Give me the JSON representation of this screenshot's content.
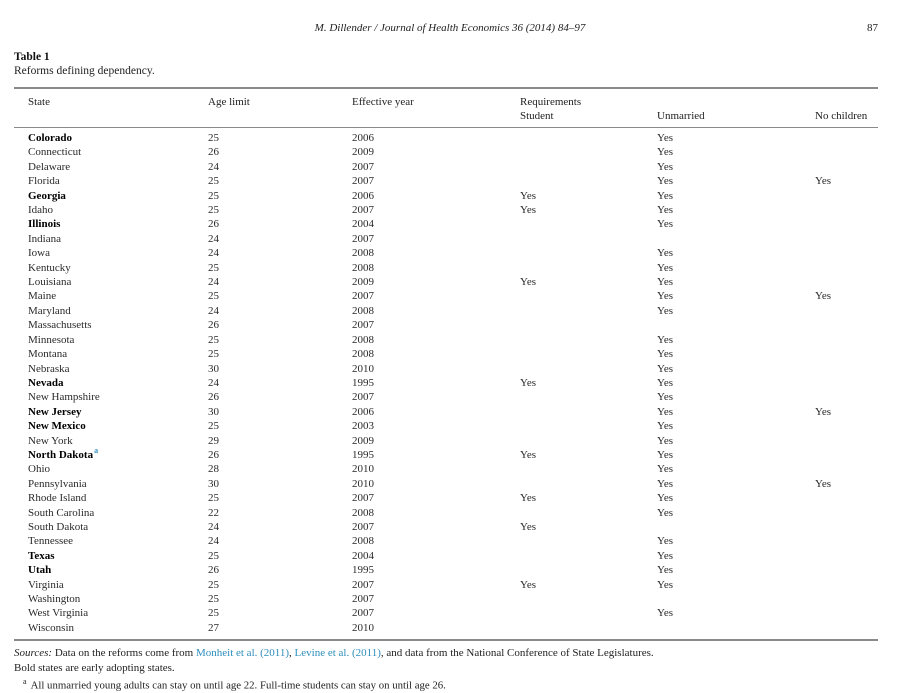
{
  "page": {
    "running_head": "M. Dillender / Journal of Health Economics 36 (2014) 84–97",
    "page_number": "87"
  },
  "table": {
    "label": "Table 1",
    "caption": "Reforms defining dependency.",
    "headers": {
      "state": "State",
      "age_limit": "Age limit",
      "effective_year": "Effective year",
      "requirements": "Requirements",
      "student": "Student",
      "unmarried": "Unmarried",
      "no_children": "No children"
    },
    "rows": [
      {
        "state": "Colorado",
        "bold": true,
        "fn": "",
        "age": "25",
        "year": "2006",
        "student": "",
        "unmarried": "Yes",
        "no_children": ""
      },
      {
        "state": "Connecticut",
        "bold": false,
        "fn": "",
        "age": "26",
        "year": "2009",
        "student": "",
        "unmarried": "Yes",
        "no_children": ""
      },
      {
        "state": "Delaware",
        "bold": false,
        "fn": "",
        "age": "24",
        "year": "2007",
        "student": "",
        "unmarried": "Yes",
        "no_children": ""
      },
      {
        "state": "Florida",
        "bold": false,
        "fn": "",
        "age": "25",
        "year": "2007",
        "student": "",
        "unmarried": "Yes",
        "no_children": "Yes"
      },
      {
        "state": "Georgia",
        "bold": true,
        "fn": "",
        "age": "25",
        "year": "2006",
        "student": "Yes",
        "unmarried": "Yes",
        "no_children": ""
      },
      {
        "state": "Idaho",
        "bold": false,
        "fn": "",
        "age": "25",
        "year": "2007",
        "student": "Yes",
        "unmarried": "Yes",
        "no_children": ""
      },
      {
        "state": "Illinois",
        "bold": true,
        "fn": "",
        "age": "26",
        "year": "2004",
        "student": "",
        "unmarried": "Yes",
        "no_children": ""
      },
      {
        "state": "Indiana",
        "bold": false,
        "fn": "",
        "age": "24",
        "year": "2007",
        "student": "",
        "unmarried": "",
        "no_children": ""
      },
      {
        "state": "Iowa",
        "bold": false,
        "fn": "",
        "age": "24",
        "year": "2008",
        "student": "",
        "unmarried": "Yes",
        "no_children": ""
      },
      {
        "state": "Kentucky",
        "bold": false,
        "fn": "",
        "age": "25",
        "year": "2008",
        "student": "",
        "unmarried": "Yes",
        "no_children": ""
      },
      {
        "state": "Louisiana",
        "bold": false,
        "fn": "",
        "age": "24",
        "year": "2009",
        "student": "Yes",
        "unmarried": "Yes",
        "no_children": ""
      },
      {
        "state": "Maine",
        "bold": false,
        "fn": "",
        "age": "25",
        "year": "2007",
        "student": "",
        "unmarried": "Yes",
        "no_children": "Yes"
      },
      {
        "state": "Maryland",
        "bold": false,
        "fn": "",
        "age": "24",
        "year": "2008",
        "student": "",
        "unmarried": "Yes",
        "no_children": ""
      },
      {
        "state": "Massachusetts",
        "bold": false,
        "fn": "",
        "age": "26",
        "year": "2007",
        "student": "",
        "unmarried": "",
        "no_children": ""
      },
      {
        "state": "Minnesota",
        "bold": false,
        "fn": "",
        "age": "25",
        "year": "2008",
        "student": "",
        "unmarried": "Yes",
        "no_children": ""
      },
      {
        "state": "Montana",
        "bold": false,
        "fn": "",
        "age": "25",
        "year": "2008",
        "student": "",
        "unmarried": "Yes",
        "no_children": ""
      },
      {
        "state": "Nebraska",
        "bold": false,
        "fn": "",
        "age": "30",
        "year": "2010",
        "student": "",
        "unmarried": "Yes",
        "no_children": ""
      },
      {
        "state": "Nevada",
        "bold": true,
        "fn": "",
        "age": "24",
        "year": "1995",
        "student": "Yes",
        "unmarried": "Yes",
        "no_children": ""
      },
      {
        "state": "New Hampshire",
        "bold": false,
        "fn": "",
        "age": "26",
        "year": "2007",
        "student": "",
        "unmarried": "Yes",
        "no_children": ""
      },
      {
        "state": "New Jersey",
        "bold": true,
        "fn": "",
        "age": "30",
        "year": "2006",
        "student": "",
        "unmarried": "Yes",
        "no_children": "Yes"
      },
      {
        "state": "New Mexico",
        "bold": true,
        "fn": "",
        "age": "25",
        "year": "2003",
        "student": "",
        "unmarried": "Yes",
        "no_children": ""
      },
      {
        "state": "New York",
        "bold": false,
        "fn": "",
        "age": "29",
        "year": "2009",
        "student": "",
        "unmarried": "Yes",
        "no_children": ""
      },
      {
        "state": "North Dakota",
        "bold": true,
        "fn": "a",
        "age": "26",
        "year": "1995",
        "student": "Yes",
        "unmarried": "Yes",
        "no_children": ""
      },
      {
        "state": "Ohio",
        "bold": false,
        "fn": "",
        "age": "28",
        "year": "2010",
        "student": "",
        "unmarried": "Yes",
        "no_children": ""
      },
      {
        "state": "Pennsylvania",
        "bold": false,
        "fn": "",
        "age": "30",
        "year": "2010",
        "student": "",
        "unmarried": "Yes",
        "no_children": "Yes"
      },
      {
        "state": "Rhode Island",
        "bold": false,
        "fn": "",
        "age": "25",
        "year": "2007",
        "student": "Yes",
        "unmarried": "Yes",
        "no_children": ""
      },
      {
        "state": "South Carolina",
        "bold": false,
        "fn": "",
        "age": "22",
        "year": "2008",
        "student": "",
        "unmarried": "Yes",
        "no_children": ""
      },
      {
        "state": "South Dakota",
        "bold": false,
        "fn": "",
        "age": "24",
        "year": "2007",
        "student": "Yes",
        "unmarried": "",
        "no_children": ""
      },
      {
        "state": "Tennessee",
        "bold": false,
        "fn": "",
        "age": "24",
        "year": "2008",
        "student": "",
        "unmarried": "Yes",
        "no_children": ""
      },
      {
        "state": "Texas",
        "bold": true,
        "fn": "",
        "age": "25",
        "year": "2004",
        "student": "",
        "unmarried": "Yes",
        "no_children": ""
      },
      {
        "state": "Utah",
        "bold": true,
        "fn": "",
        "age": "26",
        "year": "1995",
        "student": "",
        "unmarried": "Yes",
        "no_children": ""
      },
      {
        "state": "Virginia",
        "bold": false,
        "fn": "",
        "age": "25",
        "year": "2007",
        "student": "Yes",
        "unmarried": "Yes",
        "no_children": ""
      },
      {
        "state": "Washington",
        "bold": false,
        "fn": "",
        "age": "25",
        "year": "2007",
        "student": "",
        "unmarried": "",
        "no_children": ""
      },
      {
        "state": "West Virginia",
        "bold": false,
        "fn": "",
        "age": "25",
        "year": "2007",
        "student": "",
        "unmarried": "Yes",
        "no_children": ""
      },
      {
        "state": "Wisconsin",
        "bold": false,
        "fn": "",
        "age": "27",
        "year": "2010",
        "student": "",
        "unmarried": "",
        "no_children": ""
      }
    ]
  },
  "notes": {
    "sources_label": "Sources:",
    "sources_text_1": " Data on the reforms come from ",
    "link_monheit": "Monheit et al. (2011)",
    "sources_sep": ", ",
    "link_levine": "Levine et al. (2011)",
    "sources_text_2": ", and data from the National Conference of State Legislatures.",
    "bold_note": "Bold states are early adopting states.",
    "footnote_marker": "a",
    "footnote_text": "All unmarried young adults can stay on until age 22. Full-time students can stay on until age 26."
  },
  "colors": {
    "link": "#2d8ebc",
    "rule": "#8a8a8a"
  }
}
